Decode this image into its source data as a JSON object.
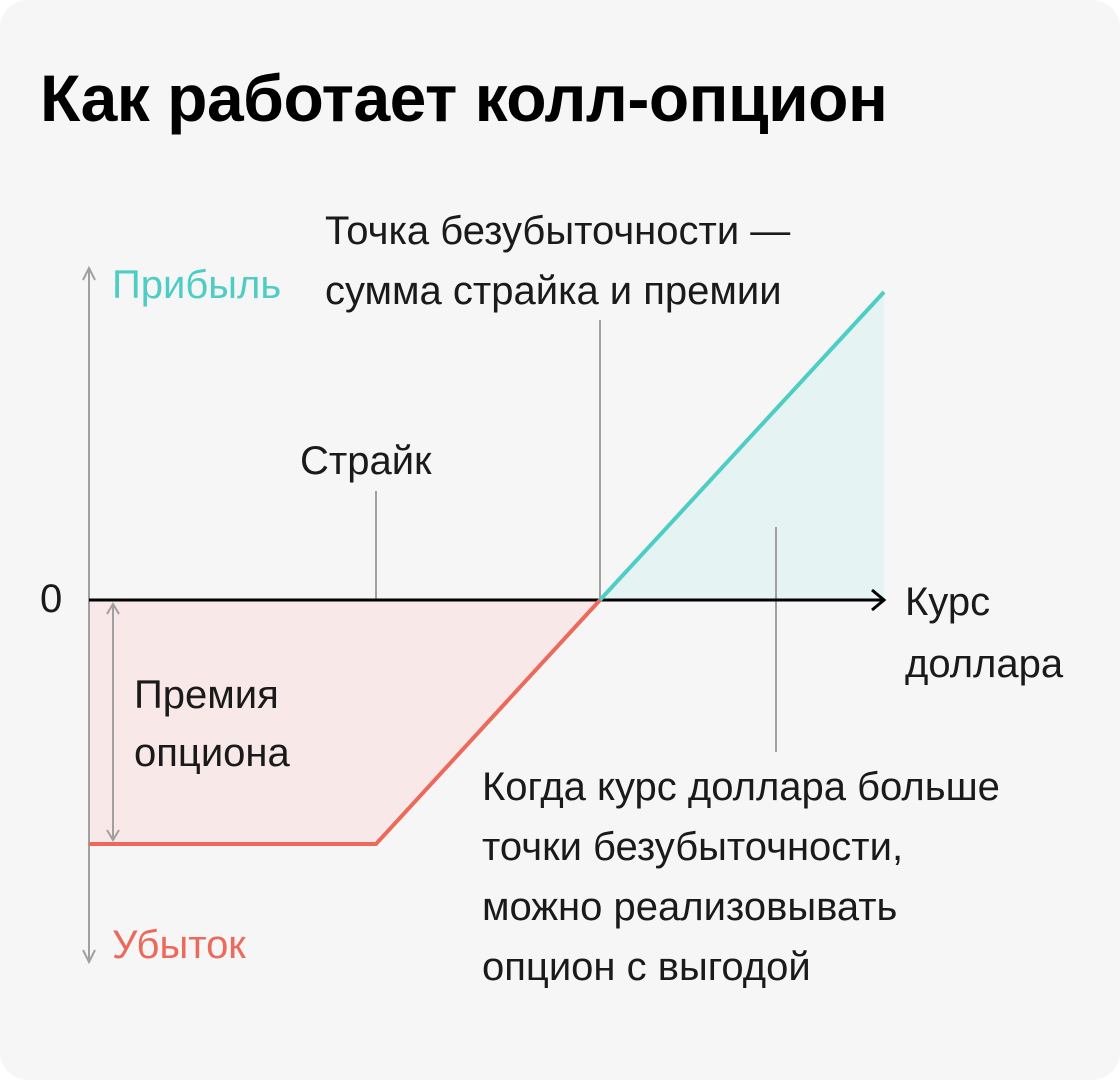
{
  "title": "Как работает колл-опцион",
  "axis": {
    "y_top_label": "Прибыль",
    "y_bottom_label": "Убыток",
    "zero_label": "0",
    "x_label_line1": "Курс",
    "x_label_line2": "доллара"
  },
  "annotations": {
    "strike": "Страйк",
    "breakeven_line1": "Точка безубыточности —",
    "breakeven_line2": "сумма страйка и премии",
    "premium_line1": "Премия",
    "premium_line2": "опциона",
    "profit_note_line1": "Когда курс доллара больше",
    "profit_note_line2": "точки безубыточности,",
    "profit_note_line3": "можно реализовывать",
    "profit_note_line4": "опцион с выгодой"
  },
  "colors": {
    "profit": "#4ecdc4",
    "loss": "#eb6a5c",
    "axis": "#a0a0a0",
    "profit_fill": "#e6f3f3",
    "loss_fill": "#f8e8e8",
    "background": "#f6f6f6"
  }
}
